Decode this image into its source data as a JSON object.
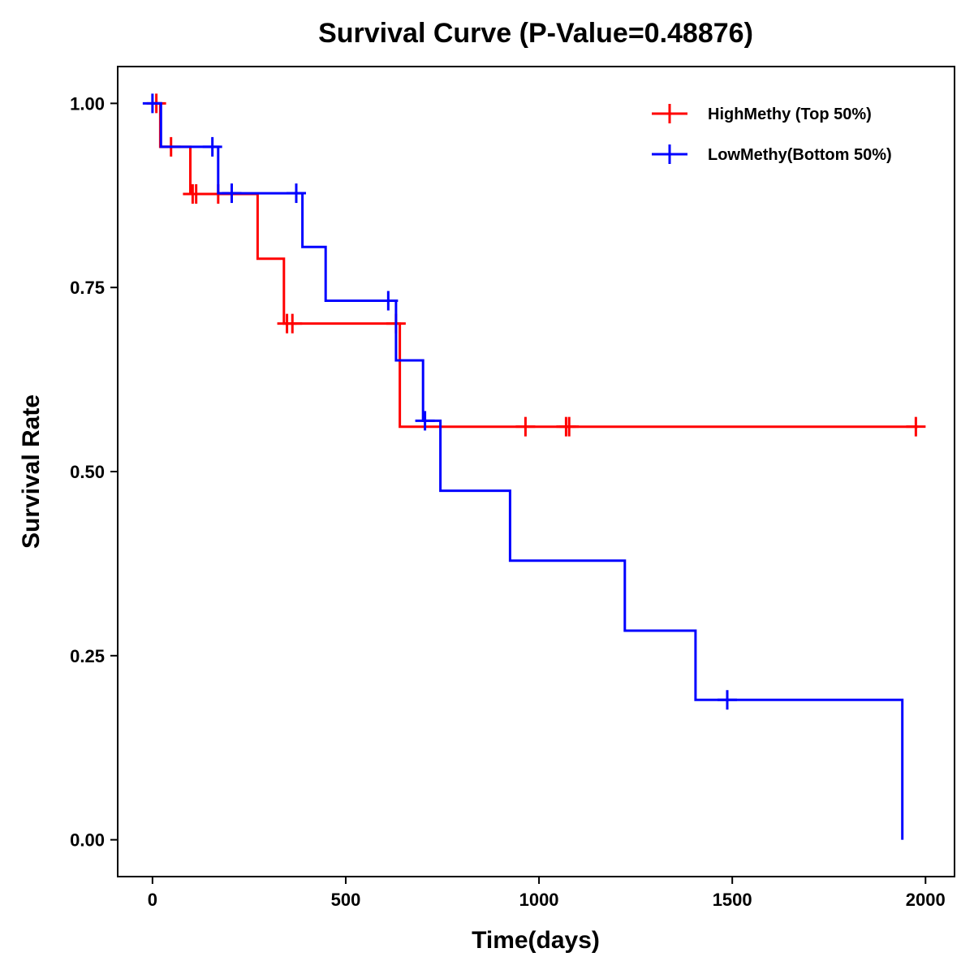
{
  "chart_data": {
    "type": "line",
    "subtype": "kaplan-meier-step",
    "title": "Survival Curve (P-Value=0.48876)",
    "xlabel": "Time(days)",
    "ylabel": "Survival Rate",
    "xlim": [
      -90,
      2075
    ],
    "ylim": [
      -0.05,
      1.05
    ],
    "xticks": [
      0,
      500,
      1000,
      1500,
      2000
    ],
    "xtick_labels": [
      "0",
      "500",
      "1000",
      "1500",
      "2000"
    ],
    "yticks": [
      0,
      0.25,
      0.5,
      0.75,
      1.0
    ],
    "ytick_labels": [
      "0.00",
      "0.25",
      "0.50",
      "0.75",
      "1.00"
    ],
    "grid": false,
    "legend_position": "top-right",
    "series": [
      {
        "name": "HighMethy (Top 50%)",
        "color": "#ff0000",
        "steps": [
          {
            "t": 0,
            "s": 1.0
          },
          {
            "t": 20,
            "s": 0.941
          },
          {
            "t": 98,
            "s": 0.877
          },
          {
            "t": 272,
            "s": 0.789
          },
          {
            "t": 340,
            "s": 0.701
          },
          {
            "t": 640,
            "s": 0.561
          }
        ],
        "end_time": 1980,
        "censored": [
          {
            "t": 10,
            "s": 1.0
          },
          {
            "t": 48,
            "s": 0.941
          },
          {
            "t": 104,
            "s": 0.877
          },
          {
            "t": 113,
            "s": 0.877
          },
          {
            "t": 170,
            "s": 0.877
          },
          {
            "t": 348,
            "s": 0.701
          },
          {
            "t": 362,
            "s": 0.701
          },
          {
            "t": 630,
            "s": 0.701
          },
          {
            "t": 965,
            "s": 0.561
          },
          {
            "t": 1070,
            "s": 0.561
          },
          {
            "t": 1078,
            "s": 0.561
          },
          {
            "t": 1975,
            "s": 0.561
          }
        ]
      },
      {
        "name": "LowMethy(Bottom 50%)",
        "color": "#0000ff",
        "steps": [
          {
            "t": 0,
            "s": 1.0
          },
          {
            "t": 22,
            "s": 0.941
          },
          {
            "t": 170,
            "s": 0.878
          },
          {
            "t": 388,
            "s": 0.805
          },
          {
            "t": 448,
            "s": 0.732
          },
          {
            "t": 630,
            "s": 0.651
          },
          {
            "t": 700,
            "s": 0.569
          },
          {
            "t": 745,
            "s": 0.474
          },
          {
            "t": 925,
            "s": 0.379
          },
          {
            "t": 1222,
            "s": 0.284
          },
          {
            "t": 1405,
            "s": 0.19
          },
          {
            "t": 1940,
            "s": 0.0
          }
        ],
        "end_time": 1940,
        "censored": [
          {
            "t": 0,
            "s": 1.0
          },
          {
            "t": 155,
            "s": 0.941
          },
          {
            "t": 205,
            "s": 0.878
          },
          {
            "t": 372,
            "s": 0.878
          },
          {
            "t": 610,
            "s": 0.732
          },
          {
            "t": 705,
            "s": 0.569
          },
          {
            "t": 1487,
            "s": 0.19
          }
        ]
      }
    ]
  }
}
